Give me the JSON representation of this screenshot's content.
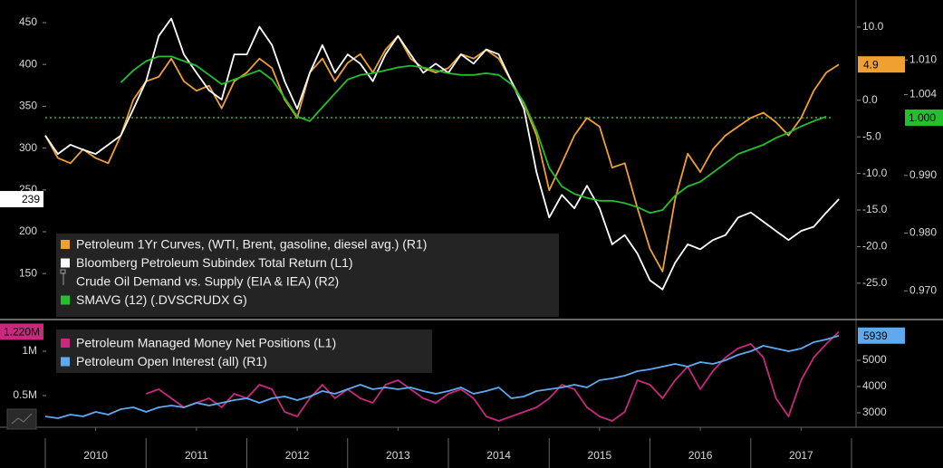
{
  "chart_data": [
    {
      "type": "line",
      "x": [
        2010,
        2010.125,
        2010.25,
        2010.375,
        2010.5,
        2010.625,
        2010.75,
        2010.875,
        2011,
        2011.125,
        2011.25,
        2011.375,
        2011.5,
        2011.625,
        2011.75,
        2011.875,
        2012,
        2012.125,
        2012.25,
        2012.375,
        2012.5,
        2012.625,
        2012.75,
        2012.875,
        2013,
        2013.125,
        2013.25,
        2013.375,
        2013.5,
        2013.625,
        2013.75,
        2013.875,
        2014,
        2014.125,
        2014.25,
        2014.375,
        2014.5,
        2014.625,
        2014.75,
        2014.875,
        2015,
        2015.125,
        2015.25,
        2015.375,
        2015.5,
        2015.625,
        2015.75,
        2015.875,
        2016,
        2016.125,
        2016.25,
        2016.375,
        2016.5,
        2016.625,
        2016.75,
        2016.875,
        2017,
        2017.125,
        2017.25,
        2017.375,
        2017.5,
        2017.625,
        2017.75,
        2017.875
      ],
      "xlim": [
        2010,
        2018
      ],
      "ylim": [
        100,
        470
      ],
      "yticks": [
        150,
        200,
        250,
        300,
        350,
        400,
        450
      ],
      "y2lim": [
        -29.4,
        12.9
      ],
      "y2ticks": [
        {
          "value": 10,
          "label": "10.0"
        },
        {
          "value": 0,
          "label": "0.0"
        },
        {
          "value": -5,
          "label": "-5.0"
        },
        {
          "value": -10,
          "label": "-10.0"
        },
        {
          "value": -15,
          "label": "-15.0"
        },
        {
          "value": -20,
          "label": "-20.0"
        },
        {
          "value": -25,
          "label": "-25.0"
        }
      ],
      "y3lim": [
        0.96575,
        1.01936
      ],
      "y3ticks": [
        {
          "value": 1.01,
          "label": "1.010"
        },
        {
          "value": 1.004,
          "label": "1.004"
        },
        {
          "value": 0.99,
          "label": "0.990"
        },
        {
          "value": 0.98,
          "label": "0.980"
        },
        {
          "value": 0.97,
          "label": "0.970"
        }
      ],
      "reference_line": {
        "value": 1,
        "label": "1.000",
        "axis": "y3",
        "color": "#22c02a"
      },
      "series": [
        {
          "name": "Petroleum 1Yr Curves, (WTI, Brent, gasoline, diesel avg.) (R1)",
          "color": "#f0a030",
          "axis": "y2",
          "values": [
            -4.8,
            -7.9,
            -8.6,
            -6.7,
            -7.9,
            -8.6,
            -4.8,
            0.1,
            2.6,
            3.2,
            5.7,
            2.6,
            1.3,
            2,
            -1.1,
            2.6,
            3.8,
            5.7,
            4.4,
            0.1,
            -2.4,
            3.8,
            5.7,
            2.6,
            5.1,
            6.3,
            3.8,
            6.9,
            8.8,
            5.7,
            4.4,
            3.8,
            4.4,
            6.3,
            5.7,
            6.9,
            5.7,
            2.6,
            -0.5,
            -4.8,
            -12.3,
            -8.6,
            -4.8,
            -2.4,
            -3.6,
            -9.2,
            -8.6,
            -14.7,
            -20.3,
            -23.4,
            -13.5,
            -7.3,
            -9.8,
            -6.7,
            -4.8,
            -3.6,
            -2.4,
            -1.7,
            -3,
            -4.8,
            -2.4,
            1.3,
            3.8,
            4.9
          ]
        },
        {
          "name": "Bloomberg Petroleum Subindex Total Return (L1)",
          "color": "#ffffff",
          "axis": "y",
          "values": [
            315,
            293,
            304,
            298,
            293,
            304,
            315,
            347,
            380,
            434,
            455,
            412,
            390,
            369,
            358,
            412,
            412,
            445,
            423,
            380,
            347,
            390,
            423,
            390,
            412,
            401,
            380,
            412,
            434,
            412,
            390,
            401,
            390,
            412,
            401,
            418,
            412,
            380,
            347,
            271,
            217,
            244,
            228,
            255,
            228,
            185,
            196,
            174,
            142,
            131,
            163,
            185,
            179,
            190,
            196,
            217,
            223,
            212,
            201,
            190,
            201,
            206,
            223,
            239
          ]
        },
        {
          "name": "Crude Oil Demand vs. Supply (EIA & IEA) (R2)",
          "axis": "y3"
        },
        {
          "name": "SMAVG (12) (.DVSCRUDX G)",
          "color": "#22c02a",
          "axis": "y3",
          "values": [
            null,
            null,
            null,
            null,
            null,
            null,
            1.0061,
            1.0082,
            1.0098,
            1.0106,
            1.0106,
            1.0098,
            1.009,
            1.0074,
            1.0058,
            1.0066,
            1.0074,
            1.0082,
            1.0066,
            1.0034,
            1.0002,
            0.9994,
            1.0018,
            1.0042,
            1.0066,
            1.0074,
            1.0077,
            1.0082,
            1.0087,
            1.009,
            1.0087,
            1.0082,
            1.0077,
            1.0074,
            1.0074,
            1.0077,
            1.0074,
            1.0058,
            1.0026,
            0.9977,
            0.9913,
            0.9881,
            0.9868,
            0.9861,
            0.9856,
            0.9856,
            0.9852,
            0.9845,
            0.9835,
            0.984,
            0.9865,
            0.9881,
            0.9889,
            0.9905,
            0.9921,
            0.9937,
            0.9945,
            0.9953,
            0.9965,
            0.9974,
            0.9985,
            0.9994,
            1.0002,
            null
          ]
        }
      ]
    },
    {
      "type": "line",
      "x": [
        2010,
        2010.125,
        2010.25,
        2010.375,
        2010.5,
        2010.625,
        2010.75,
        2010.875,
        2011,
        2011.125,
        2011.25,
        2011.375,
        2011.5,
        2011.625,
        2011.75,
        2011.875,
        2012,
        2012.125,
        2012.25,
        2012.375,
        2012.5,
        2012.625,
        2012.75,
        2012.875,
        2013,
        2013.125,
        2013.25,
        2013.375,
        2013.5,
        2013.625,
        2013.75,
        2013.875,
        2014,
        2014.125,
        2014.25,
        2014.375,
        2014.5,
        2014.625,
        2014.75,
        2014.875,
        2015,
        2015.125,
        2015.25,
        2015.375,
        2015.5,
        2015.625,
        2015.75,
        2015.875,
        2016,
        2016.125,
        2016.25,
        2016.375,
        2016.5,
        2016.625,
        2016.75,
        2016.875,
        2017,
        2017.125,
        2017.25,
        2017.375,
        2017.5,
        2017.625,
        2017.75,
        2017.875
      ],
      "xlim": [
        2010,
        2018
      ],
      "xticks": [
        {
          "value": 2010.5,
          "label": "2010"
        },
        {
          "value": 2011.5,
          "label": "2011"
        },
        {
          "value": 2012.5,
          "label": "2012"
        },
        {
          "value": 2013.5,
          "label": "2013"
        },
        {
          "value": 2014.5,
          "label": "2014"
        },
        {
          "value": 2015.5,
          "label": "2015"
        },
        {
          "value": 2016.5,
          "label": "2016"
        },
        {
          "value": 2017.5,
          "label": "2017"
        }
      ],
      "ylim": [
        163000,
        1306000
      ],
      "yticks": [
        {
          "value": 1000000,
          "label": "1M"
        },
        {
          "value": 500000,
          "label": "0.5M"
        }
      ],
      "y2lim": [
        2517,
        6379
      ],
      "y2ticks": [
        5000,
        4000,
        3000
      ],
      "series": [
        {
          "name": "Petroleum Managed Money Net Positions (L1)",
          "color": "#c8287e",
          "axis": "y",
          "tag_label": "1.220M",
          "values": [
            null,
            null,
            null,
            null,
            null,
            null,
            null,
            null,
            520000,
            571000,
            469000,
            367000,
            418000,
            469000,
            367000,
            520000,
            469000,
            622000,
            571000,
            316000,
            265000,
            469000,
            622000,
            469000,
            571000,
            469000,
            418000,
            622000,
            673000,
            571000,
            469000,
            418000,
            520000,
            571000,
            469000,
            265000,
            214000,
            265000,
            316000,
            367000,
            469000,
            622000,
            571000,
            367000,
            265000,
            214000,
            316000,
            673000,
            622000,
            469000,
            673000,
            827000,
            571000,
            776000,
            929000,
            1031000,
            1082000,
            929000,
            469000,
            265000,
            673000,
            929000,
            1082000,
            1220000
          ]
        },
        {
          "name": "Petroleum Open Interest (all) (R1)",
          "color": "#5eaaf0",
          "axis": "y2",
          "values": [
            2862,
            2793,
            2930,
            2862,
            3034,
            2930,
            3138,
            3207,
            3034,
            3207,
            3276,
            3207,
            3379,
            3276,
            3379,
            3483,
            3552,
            3379,
            3552,
            3621,
            3483,
            3621,
            3828,
            3724,
            3897,
            4069,
            3897,
            3966,
            3897,
            3966,
            3828,
            3724,
            3828,
            3966,
            3724,
            3828,
            3966,
            3552,
            3621,
            3828,
            3897,
            3966,
            4069,
            3966,
            4241,
            4310,
            4414,
            4586,
            4655,
            4759,
            4862,
            4759,
            4931,
            4862,
            5000,
            5207,
            5345,
            5552,
            5448,
            5345,
            5448,
            5690,
            5793,
            5939
          ]
        }
      ]
    }
  ]
}
